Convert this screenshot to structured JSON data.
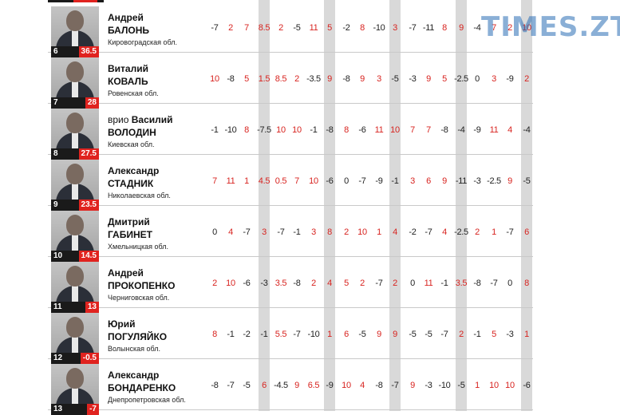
{
  "watermark": "TIMES.ZT",
  "rows": [
    {
      "rank": "6",
      "score": "36.5",
      "pre": "",
      "given": "Андрей",
      "surname": "БАЛОНЬ",
      "region": "Кировоградская обл.",
      "values": [
        "-7",
        "2",
        "7",
        "8.5",
        "2",
        "-5",
        "11",
        "5",
        "-2",
        "8",
        "-10",
        "3",
        "-7",
        "-11",
        "8",
        "9",
        "-4",
        "7",
        "2",
        "10"
      ]
    },
    {
      "rank": "7",
      "score": "28",
      "pre": "",
      "given": "Виталий",
      "surname": "КОВАЛЬ",
      "region": "Ровенская обл.",
      "values": [
        "10",
        "-8",
        "5",
        "1.5",
        "8.5",
        "2",
        "-3.5",
        "9",
        "-8",
        "9",
        "3",
        "-5",
        "-3",
        "9",
        "5",
        "-2.5",
        "0",
        "3",
        "-9",
        "2"
      ]
    },
    {
      "rank": "8",
      "score": "27.5",
      "pre": "врио ",
      "given": "Василий",
      "surname": "ВОЛОДИН",
      "region": "Киевская обл.",
      "values": [
        "-1",
        "-10",
        "8",
        "-7.5",
        "10",
        "10",
        "-1",
        "-8",
        "8",
        "-6",
        "11",
        "10",
        "7",
        "7",
        "-8",
        "-4",
        "-9",
        "11",
        "4",
        "-4"
      ]
    },
    {
      "rank": "9",
      "score": "23.5",
      "pre": "",
      "given": "Александр",
      "surname": "СТАДНИК",
      "region": "Николаевская обл.",
      "values": [
        "7",
        "11",
        "1",
        "4.5",
        "0.5",
        "7",
        "10",
        "-6",
        "0",
        "-7",
        "-9",
        "-1",
        "3",
        "6",
        "9",
        "-11",
        "-3",
        "-2.5",
        "9",
        "-5"
      ]
    },
    {
      "rank": "10",
      "score": "14.5",
      "pre": "",
      "given": "Дмитрий",
      "surname": "ГАБИНЕТ",
      "region": "Хмельницкая обл.",
      "values": [
        "0",
        "4",
        "-7",
        "3",
        "-7",
        "-1",
        "3",
        "8",
        "2",
        "10",
        "1",
        "4",
        "-2",
        "-7",
        "4",
        "-2.5",
        "2",
        "1",
        "-7",
        "6"
      ]
    },
    {
      "rank": "11",
      "score": "13",
      "pre": "",
      "given": "Андрей",
      "surname": "ПРОКОПЕНКО",
      "region": "Черниговская обл.",
      "values": [
        "2",
        "10",
        "-6",
        "-3",
        "3.5",
        "-8",
        "2",
        "4",
        "5",
        "2",
        "-7",
        "2",
        "0",
        "11",
        "-1",
        "3.5",
        "-8",
        "-7",
        "0",
        "8"
      ]
    },
    {
      "rank": "12",
      "score": "-0.5",
      "pre": "",
      "given": "Юрий",
      "surname": "ПОГУЛЯЙКО",
      "region": "Волынская обл.",
      "values": [
        "8",
        "-1",
        "-2",
        "-1",
        "5.5",
        "-7",
        "-10",
        "1",
        "6",
        "-5",
        "9",
        "9",
        "-5",
        "-5",
        "-7",
        "2",
        "-1",
        "5",
        "-3",
        "1"
      ]
    },
    {
      "rank": "13",
      "score": "-7",
      "pre": "",
      "given": "Александр",
      "surname": "БОНДАРЕНКО",
      "region": "Днепропетровская обл.",
      "values": [
        "-8",
        "-7",
        "-5",
        "6",
        "-4.5",
        "9",
        "6.5",
        "-9",
        "10",
        "4",
        "-8",
        "-7",
        "9",
        "-3",
        "-10",
        "-5",
        "1",
        "10",
        "10",
        "-6"
      ]
    }
  ]
}
